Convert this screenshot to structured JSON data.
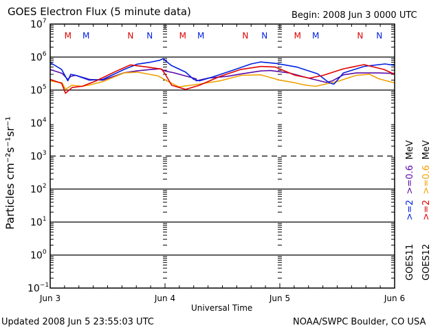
{
  "chart_data": {
    "type": "line",
    "title": "GOES Electron Flux (5 minute data)",
    "begin_label": "Begin: 2008 Jun 3 0000 UTC",
    "xlabel": "Universal Time",
    "ylabel": "Particles cm⁻²s⁻¹sr⁻¹",
    "x_unit": "hours since 2008 Jun 3 0000 UTC",
    "xlim": [
      0,
      72
    ],
    "x_ticks": [
      {
        "hour": 0,
        "label": "Jun 3"
      },
      {
        "hour": 24,
        "label": "Jun 4"
      },
      {
        "hour": 48,
        "label": "Jun 5"
      },
      {
        "hour": 72,
        "label": "Jun 6"
      }
    ],
    "y_scale": "log",
    "ylim": [
      0.1,
      10000000
    ],
    "y_ticks": [
      {
        "base": "10",
        "exp": "7",
        "value": 10000000
      },
      {
        "base": "10",
        "exp": "6",
        "value": 1000000
      },
      {
        "base": "10",
        "exp": "5",
        "value": 100000
      },
      {
        "base": "10",
        "exp": "4",
        "value": 10000
      },
      {
        "base": "10",
        "exp": "3",
        "value": 1000
      },
      {
        "base": "10",
        "exp": "2",
        "value": 100
      },
      {
        "base": "10",
        "exp": "1",
        "value": 10
      },
      {
        "base": "10",
        "exp": "0",
        "value": 1
      },
      {
        "base": "10",
        "exp": "−1",
        "value": 0.1
      }
    ],
    "grid_lines_y": [
      1000000,
      100000,
      100,
      10,
      1
    ],
    "threshold_line": {
      "value": 1000,
      "style": "dashed"
    },
    "markers": [
      {
        "hour": 3.7,
        "label": "M",
        "color": "#e00000"
      },
      {
        "hour": 7.5,
        "label": "M",
        "color": "#0020e0"
      },
      {
        "hour": 16.8,
        "label": "N",
        "color": "#e00000"
      },
      {
        "hour": 20.8,
        "label": "N",
        "color": "#0020e0"
      },
      {
        "hour": 27.7,
        "label": "M",
        "color": "#e00000"
      },
      {
        "hour": 31.5,
        "label": "M",
        "color": "#0020e0"
      },
      {
        "hour": 40.8,
        "label": "N",
        "color": "#e00000"
      },
      {
        "hour": 44.8,
        "label": "N",
        "color": "#0020e0"
      },
      {
        "hour": 51.7,
        "label": "M",
        "color": "#e00000"
      },
      {
        "hour": 55.5,
        "label": "M",
        "color": "#0020e0"
      },
      {
        "hour": 64.8,
        "label": "N",
        "color": "#e00000"
      },
      {
        "hour": 68.8,
        "label": "N",
        "color": "#0020e0"
      }
    ],
    "series": [
      {
        "name": "GOES11 >=0.6 MeV",
        "color": "#5a0aa8",
        "points": [
          [
            0,
            420000
          ],
          [
            2.5,
            320000
          ],
          [
            3.7,
            210000
          ],
          [
            4.3,
            260000
          ],
          [
            5.3,
            280000
          ],
          [
            8.2,
            210000
          ],
          [
            11,
            200000
          ],
          [
            15.3,
            330000
          ],
          [
            18,
            380000
          ],
          [
            21,
            420000
          ],
          [
            23,
            440000
          ],
          [
            24,
            380000
          ],
          [
            26,
            330000
          ],
          [
            30.5,
            220000
          ],
          [
            30.5,
            190000
          ],
          [
            33,
            230000
          ],
          [
            37,
            260000
          ],
          [
            40,
            310000
          ],
          [
            44,
            380000
          ],
          [
            46,
            390000
          ],
          [
            48,
            360000
          ],
          [
            50,
            330000
          ],
          [
            54,
            230000
          ],
          [
            57.7,
            170000
          ],
          [
            59,
            190000
          ],
          [
            61.3,
            290000
          ],
          [
            64,
            330000
          ],
          [
            68.5,
            330000
          ],
          [
            72,
            320000
          ]
        ]
      },
      {
        "name": "GOES12 >=0.6 MeV",
        "color": "#f0a000",
        "points": [
          [
            0,
            190000
          ],
          [
            2.5,
            165000
          ],
          [
            3.2,
            105000
          ],
          [
            4.5,
            140000
          ],
          [
            6.7,
            130000
          ],
          [
            8,
            140000
          ],
          [
            11,
            180000
          ],
          [
            15.4,
            330000
          ],
          [
            18.2,
            350000
          ],
          [
            22.5,
            270000
          ],
          [
            24.7,
            180000
          ],
          [
            26.9,
            125000
          ],
          [
            31,
            150000
          ],
          [
            35.5,
            190000
          ],
          [
            40,
            280000
          ],
          [
            44,
            290000
          ],
          [
            48,
            200000
          ],
          [
            50.8,
            170000
          ],
          [
            53.5,
            140000
          ],
          [
            55.5,
            130000
          ],
          [
            59.9,
            180000
          ],
          [
            64,
            280000
          ],
          [
            66.8,
            300000
          ],
          [
            68.7,
            220000
          ],
          [
            72,
            165000
          ]
        ]
      },
      {
        "name": "GOES11 >=2 MeV",
        "color": "#0020e0",
        "points": [
          [
            0,
            680000
          ],
          [
            2.4,
            420000
          ],
          [
            3.7,
            190000
          ],
          [
            4.3,
            300000
          ],
          [
            5.3,
            280000
          ],
          [
            8.2,
            200000
          ],
          [
            11,
            210000
          ],
          [
            15.4,
            420000
          ],
          [
            18.2,
            610000
          ],
          [
            21,
            700000
          ],
          [
            22.9,
            800000
          ],
          [
            23.6,
            900000
          ],
          [
            25.3,
            560000
          ],
          [
            28.3,
            350000
          ],
          [
            30,
            210000
          ],
          [
            31.2,
            190000
          ],
          [
            34,
            250000
          ],
          [
            38,
            390000
          ],
          [
            42,
            620000
          ],
          [
            44,
            710000
          ],
          [
            47.3,
            640000
          ],
          [
            51.5,
            500000
          ],
          [
            55.9,
            310000
          ],
          [
            58.2,
            170000
          ],
          [
            59.3,
            150000
          ],
          [
            61.3,
            330000
          ],
          [
            65.6,
            520000
          ],
          [
            70,
            620000
          ],
          [
            72,
            560000
          ]
        ]
      },
      {
        "name": "GOES12 >=2 MeV",
        "color": "#e00000",
        "points": [
          [
            0,
            210000
          ],
          [
            2.4,
            160000
          ],
          [
            3.2,
            80000
          ],
          [
            4.6,
            120000
          ],
          [
            6.7,
            130000
          ],
          [
            9.6,
            190000
          ],
          [
            13.9,
            380000
          ],
          [
            16.8,
            580000
          ],
          [
            20.2,
            500000
          ],
          [
            23.3,
            430000
          ],
          [
            24,
            310000
          ],
          [
            25.4,
            140000
          ],
          [
            28.3,
            105000
          ],
          [
            31.2,
            140000
          ],
          [
            35.5,
            260000
          ],
          [
            39.8,
            420000
          ],
          [
            44.1,
            520000
          ],
          [
            47,
            500000
          ],
          [
            51.2,
            280000
          ],
          [
            54.2,
            230000
          ],
          [
            57.1,
            280000
          ],
          [
            61.3,
            440000
          ],
          [
            65.6,
            590000
          ],
          [
            69.8,
            420000
          ],
          [
            72,
            300000
          ]
        ]
      }
    ],
    "right_legend": [
      {
        "satellite": "GOES11",
        "parts": [
          {
            "text": ">=2",
            "color": "#0020e0"
          },
          {
            "text": ">=0.6",
            "color": "#5a0aa8"
          },
          {
            "text": "MeV",
            "color": "#000000"
          }
        ]
      },
      {
        "satellite": "GOES12",
        "parts": [
          {
            "text": ">=2",
            "color": "#e00000"
          },
          {
            "text": ">=0.6",
            "color": "#f0a000"
          },
          {
            "text": "MeV",
            "color": "#000000"
          }
        ]
      }
    ]
  },
  "footer": {
    "updated": "Updated 2008 Jun  5 23:55:03 UTC",
    "credit": "NOAA/SWPC Boulder, CO USA"
  }
}
